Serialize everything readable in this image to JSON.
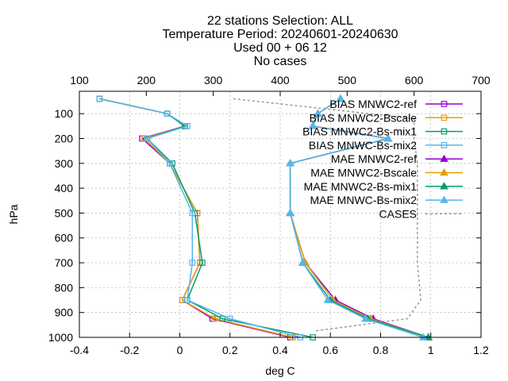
{
  "chart_data": {
    "type": "line",
    "title": [
      "22 stations Selection: ALL",
      "Temperature  Period: 20240601-20240630",
      "Used 00 + 06 12",
      "No cases"
    ],
    "xlabel": "deg C",
    "ylabel": "hPa",
    "xlim": [
      -0.4,
      1.2
    ],
    "xticks": [
      -0.4,
      -0.2,
      0,
      0.2,
      0.4,
      0.6,
      0.8,
      1,
      1.2
    ],
    "xtick_labels": [
      "-0.4",
      "-0.2",
      "0",
      "0.2",
      "0.4",
      "0.6",
      "0.8",
      "1",
      "1.2"
    ],
    "x2lim": [
      100,
      700
    ],
    "x2ticks": [
      100,
      200,
      300,
      400,
      500,
      600,
      700
    ],
    "x2tick_labels": [
      "100",
      "200",
      "300",
      "400",
      "500",
      "600",
      "700"
    ],
    "ylim": [
      1000,
      10
    ],
    "yticks": [
      100,
      200,
      300,
      400,
      500,
      600,
      700,
      800,
      900,
      1000
    ],
    "ytick_labels": [
      "100",
      "200",
      "300",
      "400",
      "500",
      "600",
      "700",
      "800",
      "900",
      "1000"
    ],
    "grid": true,
    "legend_position": "top-right",
    "levels": [
      40,
      100,
      150,
      200,
      300,
      500,
      700,
      850,
      925,
      1000
    ],
    "series": [
      {
        "name": "BIAS MNWC2-ref",
        "color": "#9400d3",
        "marker": "square",
        "x": [
          -0.32,
          -0.05,
          0.02,
          -0.15,
          -0.04,
          0.07,
          0.08,
          0.01,
          0.13,
          0.44
        ]
      },
      {
        "name": "BIAS MNWC2-Bscale",
        "color": "#e69f00",
        "marker": "square",
        "x": [
          -0.32,
          -0.05,
          0.02,
          -0.14,
          -0.04,
          0.07,
          0.08,
          0.01,
          0.14,
          0.45
        ]
      },
      {
        "name": "BIAS MNWC2-Bs-mix1",
        "color": "#009e73",
        "marker": "square",
        "x": [
          -0.32,
          -0.05,
          0.02,
          -0.13,
          -0.03,
          0.06,
          0.09,
          0.03,
          0.17,
          0.53
        ]
      },
      {
        "name": "BIAS MNWC-Bs-mix2",
        "color": "#56b4e9",
        "marker": "square",
        "x": [
          -0.32,
          -0.05,
          0.03,
          -0.13,
          -0.04,
          0.05,
          0.05,
          0.03,
          0.2,
          0.48
        ]
      },
      {
        "name": "MAE MNWC2-ref",
        "color": "#9400d3",
        "marker": "triangle",
        "x": [
          0.64,
          0.55,
          0.53,
          0.83,
          0.44,
          0.44,
          0.5,
          0.62,
          0.77,
          0.99
        ]
      },
      {
        "name": "MAE MNWC2-Bscale",
        "color": "#e69f00",
        "marker": "triangle",
        "x": [
          0.64,
          0.55,
          0.53,
          0.83,
          0.44,
          0.44,
          0.5,
          0.61,
          0.76,
          0.99
        ]
      },
      {
        "name": "MAE MNWC2-Bs-mix1",
        "color": "#009e73",
        "marker": "triangle",
        "x": [
          0.64,
          0.55,
          0.53,
          0.83,
          0.44,
          0.44,
          0.49,
          0.6,
          0.75,
          0.99
        ]
      },
      {
        "name": "MAE MNWC-Bs-mix2",
        "color": "#56b4e9",
        "marker": "triangle",
        "x": [
          0.64,
          0.55,
          0.53,
          0.83,
          0.44,
          0.44,
          0.49,
          0.59,
          0.74,
          0.97
        ]
      }
    ],
    "cases": {
      "name": "CASES",
      "color": "#999999",
      "axis": "x2",
      "points": [
        [
          330,
          40
        ],
        [
          600,
          120
        ],
        [
          600,
          200
        ],
        [
          605,
          300
        ],
        [
          605,
          500
        ],
        [
          605,
          700
        ],
        [
          610,
          850
        ],
        [
          590,
          925
        ],
        [
          450,
          975
        ]
      ]
    }
  }
}
